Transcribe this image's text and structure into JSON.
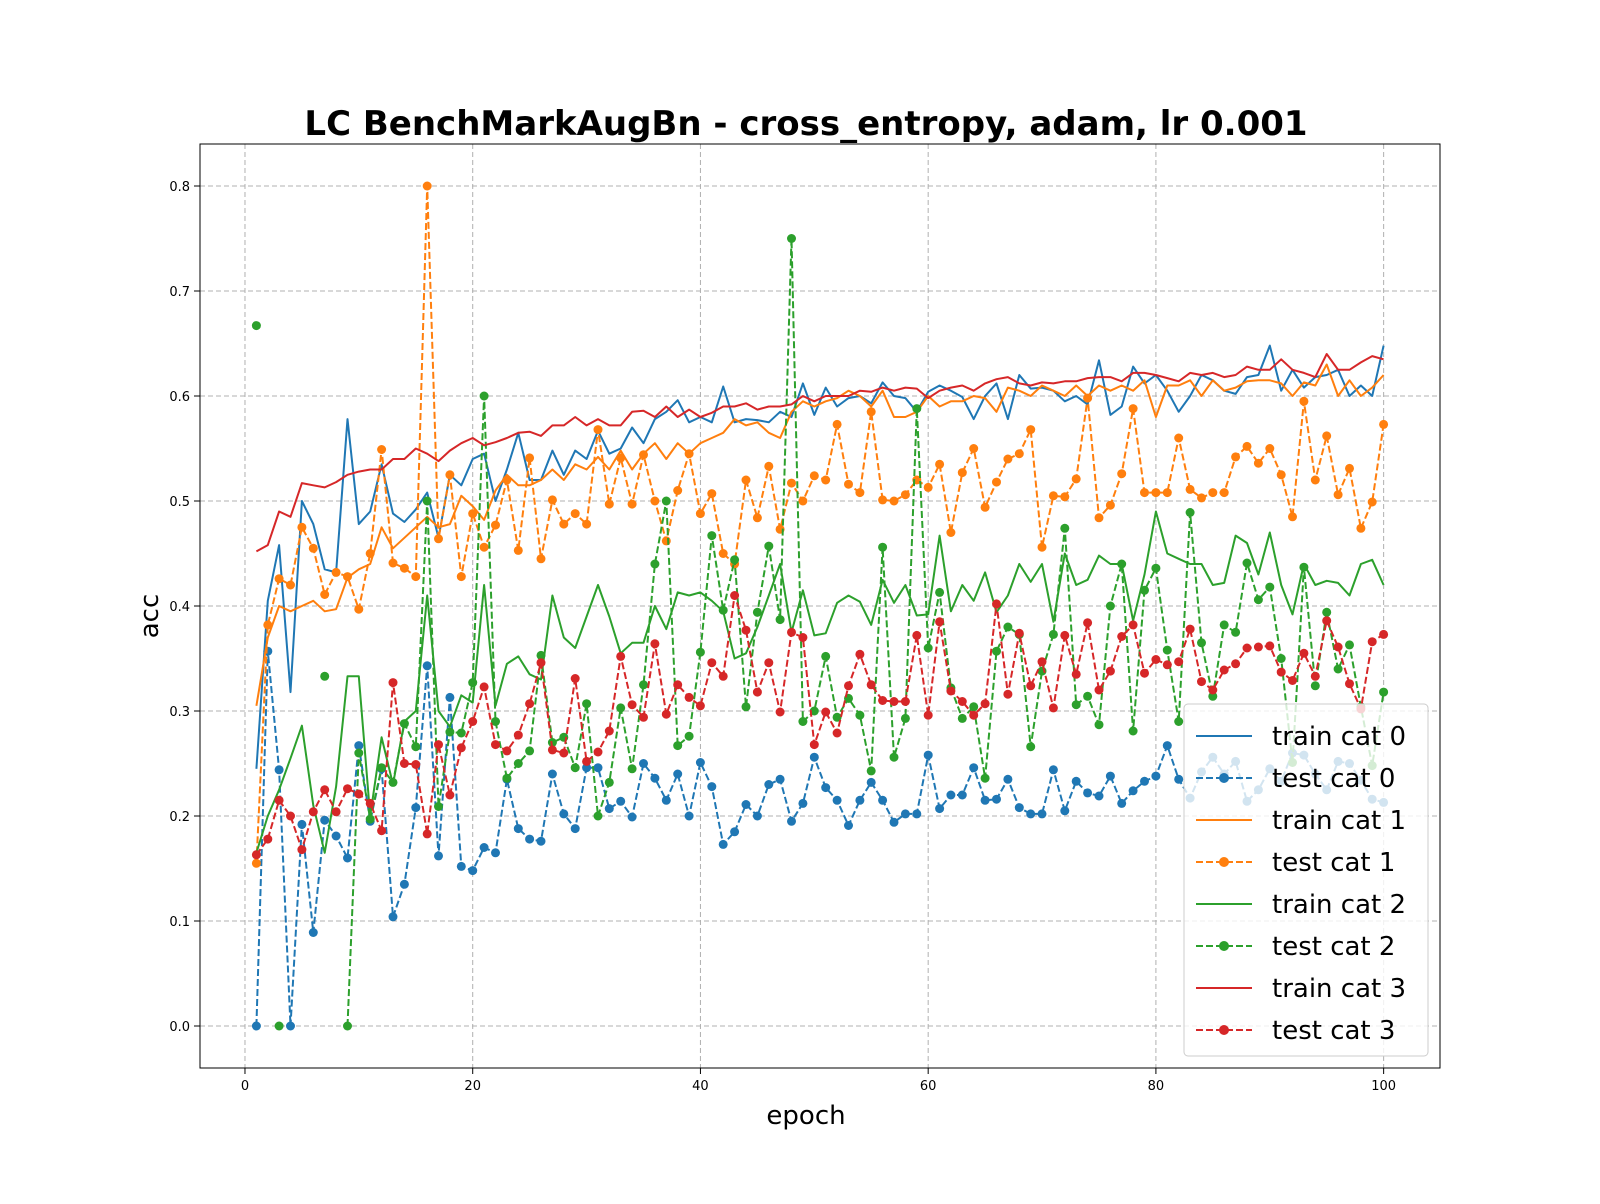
{
  "chart_data": {
    "type": "line",
    "title": "LC BenchMarkAugBn - cross_entropy, adam, lr 0.001",
    "xlabel": "epoch",
    "ylabel": "acc",
    "xlim": [
      -3.95,
      104.95
    ],
    "ylim": [
      -0.04,
      0.84
    ],
    "xticks": [
      0,
      20,
      40,
      60,
      80,
      100
    ],
    "xtick_labels": [
      "0",
      "20",
      "40",
      "60",
      "80",
      "100"
    ],
    "yticks": [
      0.0,
      0.1,
      0.2,
      0.3,
      0.4,
      0.5,
      0.6,
      0.7,
      0.8
    ],
    "ytick_labels": [
      "0.0",
      "0.1",
      "0.2",
      "0.3",
      "0.4",
      "0.5",
      "0.6",
      "0.7",
      "0.8"
    ],
    "grid": true,
    "legend_position": "lower-right",
    "x": [
      1,
      2,
      3,
      4,
      5,
      6,
      7,
      8,
      9,
      10,
      11,
      12,
      13,
      14,
      15,
      16,
      17,
      18,
      19,
      20,
      21,
      22,
      23,
      24,
      25,
      26,
      27,
      28,
      29,
      30,
      31,
      32,
      33,
      34,
      35,
      36,
      37,
      38,
      39,
      40,
      41,
      42,
      43,
      44,
      45,
      46,
      47,
      48,
      49,
      50,
      51,
      52,
      53,
      54,
      55,
      56,
      57,
      58,
      59,
      60,
      61,
      62,
      63,
      64,
      65,
      66,
      67,
      68,
      69,
      70,
      71,
      72,
      73,
      74,
      75,
      76,
      77,
      78,
      79,
      80,
      81,
      82,
      83,
      84,
      85,
      86,
      87,
      88,
      89,
      90,
      91,
      92,
      93,
      94,
      95,
      96,
      97,
      98,
      99,
      100
    ],
    "series": [
      {
        "name": "train cat 0",
        "color": "#1f77b4",
        "style": "solid",
        "marker": false,
        "values": [
          0.245,
          0.405,
          0.458,
          0.318,
          0.5,
          0.478,
          0.435,
          0.432,
          0.578,
          0.478,
          0.49,
          0.535,
          0.488,
          0.48,
          0.492,
          0.508,
          0.465,
          0.525,
          0.515,
          0.54,
          0.545,
          0.5,
          0.53,
          0.565,
          0.52,
          0.52,
          0.548,
          0.525,
          0.548,
          0.54,
          0.567,
          0.545,
          0.55,
          0.57,
          0.555,
          0.578,
          0.585,
          0.596,
          0.575,
          0.58,
          0.575,
          0.609,
          0.575,
          0.578,
          0.577,
          0.575,
          0.585,
          0.58,
          0.612,
          0.582,
          0.608,
          0.59,
          0.598,
          0.6,
          0.593,
          0.613,
          0.6,
          0.598,
          0.585,
          0.604,
          0.61,
          0.605,
          0.599,
          0.578,
          0.6,
          0.612,
          0.578,
          0.62,
          0.607,
          0.608,
          0.605,
          0.595,
          0.6,
          0.592,
          0.634,
          0.582,
          0.59,
          0.628,
          0.612,
          0.62,
          0.605,
          0.585,
          0.6,
          0.62,
          0.615,
          0.605,
          0.602,
          0.618,
          0.62,
          0.648,
          0.605,
          0.625,
          0.608,
          0.618,
          0.62,
          0.625,
          0.6,
          0.61,
          0.6,
          0.648
        ]
      },
      {
        "name": "test cat 0",
        "color": "#1f77b4",
        "style": "dashed",
        "marker": true,
        "values": [
          0.0,
          0.357,
          0.244,
          0.0,
          0.192,
          0.089,
          0.196,
          0.181,
          0.16,
          0.267,
          0.195,
          0.245,
          0.104,
          0.135,
          0.208,
          0.343,
          0.162,
          0.313,
          0.152,
          0.148,
          0.17,
          0.165,
          0.235,
          0.188,
          0.178,
          0.176,
          0.24,
          0.202,
          0.188,
          0.246,
          0.246,
          0.207,
          0.214,
          0.199,
          0.25,
          0.236,
          0.215,
          0.24,
          0.2,
          0.251,
          0.228,
          0.173,
          0.185,
          0.211,
          0.2,
          0.23,
          0.235,
          0.195,
          0.212,
          0.256,
          0.227,
          0.215,
          0.191,
          0.215,
          0.232,
          0.215,
          0.194,
          0.202,
          0.202,
          0.258,
          0.207,
          0.22,
          0.22,
          0.246,
          0.215,
          0.216,
          0.235,
          0.208,
          0.202,
          0.202,
          0.244,
          0.205,
          0.233,
          0.222,
          0.219,
          0.238,
          0.212,
          0.224,
          0.233,
          0.238,
          0.267,
          0.235,
          0.217,
          0.242,
          0.256,
          0.24,
          0.252,
          0.214,
          0.225,
          0.245,
          0.233,
          0.26,
          0.258,
          0.24,
          0.225,
          0.252,
          0.25,
          0.234,
          0.216,
          0.213
        ]
      },
      {
        "name": "train cat 1",
        "color": "#ff7f0e",
        "style": "solid",
        "marker": false,
        "values": [
          0.305,
          0.37,
          0.4,
          0.395,
          0.4,
          0.405,
          0.395,
          0.397,
          0.427,
          0.435,
          0.44,
          0.475,
          0.455,
          0.465,
          0.475,
          0.485,
          0.475,
          0.478,
          0.505,
          0.495,
          0.482,
          0.51,
          0.525,
          0.515,
          0.515,
          0.52,
          0.53,
          0.52,
          0.535,
          0.53,
          0.542,
          0.53,
          0.548,
          0.53,
          0.545,
          0.555,
          0.54,
          0.555,
          0.545,
          0.555,
          0.56,
          0.565,
          0.578,
          0.572,
          0.575,
          0.565,
          0.56,
          0.585,
          0.595,
          0.59,
          0.595,
          0.598,
          0.605,
          0.6,
          0.59,
          0.605,
          0.58,
          0.58,
          0.585,
          0.6,
          0.59,
          0.595,
          0.595,
          0.6,
          0.598,
          0.585,
          0.608,
          0.605,
          0.6,
          0.61,
          0.605,
          0.6,
          0.61,
          0.6,
          0.61,
          0.605,
          0.61,
          0.605,
          0.615,
          0.58,
          0.61,
          0.61,
          0.615,
          0.6,
          0.615,
          0.605,
          0.608,
          0.614,
          0.615,
          0.615,
          0.612,
          0.6,
          0.613,
          0.61,
          0.63,
          0.6,
          0.615,
          0.6,
          0.608,
          0.62
        ]
      },
      {
        "name": "test cat 1",
        "color": "#ff7f0e",
        "style": "dashed",
        "marker": true,
        "values": [
          0.155,
          0.382,
          0.426,
          0.42,
          0.475,
          0.455,
          0.411,
          0.432,
          0.428,
          0.397,
          0.45,
          0.549,
          0.441,
          0.436,
          0.428,
          0.8,
          0.464,
          0.525,
          0.428,
          0.488,
          0.456,
          0.477,
          0.52,
          0.453,
          0.541,
          0.445,
          0.501,
          0.478,
          0.488,
          0.478,
          0.568,
          0.497,
          0.541,
          0.497,
          0.544,
          0.5,
          0.462,
          0.51,
          0.545,
          0.488,
          0.507,
          0.45,
          0.44,
          0.52,
          0.484,
          0.533,
          0.473,
          0.517,
          0.5,
          0.524,
          0.52,
          0.573,
          0.516,
          0.508,
          0.585,
          0.501,
          0.5,
          0.506,
          0.52,
          0.513,
          0.535,
          0.47,
          0.527,
          0.55,
          0.494,
          0.518,
          0.54,
          0.545,
          0.568,
          0.456,
          0.505,
          0.504,
          0.521,
          0.598,
          0.484,
          0.496,
          0.526,
          0.588,
          0.508,
          0.508,
          0.508,
          0.56,
          0.511,
          0.503,
          0.508,
          0.508,
          0.542,
          0.552,
          0.536,
          0.55,
          0.525,
          0.485,
          0.595,
          0.52,
          0.562,
          0.506,
          0.531,
          0.474,
          0.499,
          0.573
        ]
      },
      {
        "name": "train cat 2",
        "color": "#2ca02c",
        "style": "solid",
        "marker": false,
        "values": [
          0.165,
          0.2,
          0.225,
          0.255,
          0.286,
          0.21,
          0.165,
          0.228,
          0.333,
          0.333,
          0.2,
          0.275,
          0.23,
          0.29,
          0.3,
          0.41,
          0.3,
          0.285,
          0.315,
          0.308,
          0.42,
          0.305,
          0.345,
          0.352,
          0.335,
          0.33,
          0.41,
          0.37,
          0.36,
          0.39,
          0.42,
          0.39,
          0.355,
          0.365,
          0.365,
          0.4,
          0.378,
          0.413,
          0.41,
          0.413,
          0.405,
          0.395,
          0.35,
          0.355,
          0.38,
          0.41,
          0.44,
          0.375,
          0.415,
          0.372,
          0.374,
          0.403,
          0.41,
          0.404,
          0.382,
          0.425,
          0.403,
          0.42,
          0.391,
          0.392,
          0.467,
          0.395,
          0.42,
          0.405,
          0.432,
          0.394,
          0.41,
          0.44,
          0.423,
          0.44,
          0.385,
          0.45,
          0.42,
          0.425,
          0.448,
          0.44,
          0.44,
          0.386,
          0.43,
          0.49,
          0.45,
          0.445,
          0.44,
          0.44,
          0.42,
          0.422,
          0.467,
          0.46,
          0.43,
          0.47,
          0.42,
          0.392,
          0.44,
          0.42,
          0.424,
          0.422,
          0.41,
          0.44,
          0.444,
          0.42
        ]
      },
      {
        "name": "test cat 2",
        "color": "#2ca02c",
        "style": "dashed",
        "marker": true,
        "values": [
          0.667,
          null,
          0.0,
          null,
          null,
          null,
          0.333,
          null,
          0.0,
          0.26,
          0.197,
          0.246,
          0.232,
          0.288,
          0.266,
          0.5,
          0.209,
          0.28,
          0.279,
          0.327,
          0.6,
          0.29,
          0.236,
          0.25,
          0.262,
          0.353,
          0.27,
          0.275,
          0.246,
          0.307,
          0.2,
          0.232,
          0.303,
          0.245,
          0.325,
          0.44,
          0.5,
          0.267,
          0.276,
          0.356,
          0.467,
          0.396,
          0.444,
          0.304,
          0.394,
          0.457,
          0.387,
          0.75,
          0.29,
          0.3,
          0.352,
          0.294,
          0.312,
          0.296,
          0.243,
          0.456,
          0.256,
          0.293,
          0.588,
          0.36,
          0.413,
          0.322,
          0.293,
          0.304,
          0.236,
          0.357,
          0.38,
          0.373,
          0.266,
          0.338,
          0.373,
          0.474,
          0.306,
          0.314,
          0.287,
          0.4,
          0.44,
          0.281,
          0.415,
          0.436,
          0.358,
          0.29,
          0.489,
          0.365,
          0.314,
          0.382,
          0.375,
          0.441,
          0.406,
          0.418,
          0.35,
          0.251,
          0.437,
          0.324,
          0.394,
          0.34,
          0.363,
          0.304,
          0.248,
          0.318
        ]
      },
      {
        "name": "train cat 3",
        "color": "#d62728",
        "style": "solid",
        "marker": false,
        "values": [
          0.452,
          0.458,
          0.49,
          0.485,
          0.517,
          0.515,
          0.513,
          0.518,
          0.525,
          0.528,
          0.53,
          0.53,
          0.54,
          0.54,
          0.55,
          0.545,
          0.538,
          0.548,
          0.555,
          0.56,
          0.553,
          0.556,
          0.56,
          0.565,
          0.566,
          0.562,
          0.572,
          0.572,
          0.58,
          0.572,
          0.578,
          0.572,
          0.572,
          0.585,
          0.586,
          0.58,
          0.59,
          0.58,
          0.587,
          0.58,
          0.584,
          0.59,
          0.59,
          0.593,
          0.587,
          0.59,
          0.59,
          0.592,
          0.6,
          0.595,
          0.6,
          0.6,
          0.6,
          0.605,
          0.604,
          0.608,
          0.605,
          0.608,
          0.607,
          0.598,
          0.605,
          0.608,
          0.61,
          0.605,
          0.612,
          0.616,
          0.618,
          0.612,
          0.61,
          0.613,
          0.612,
          0.614,
          0.614,
          0.617,
          0.618,
          0.618,
          0.614,
          0.622,
          0.622,
          0.62,
          0.617,
          0.614,
          0.622,
          0.62,
          0.622,
          0.618,
          0.62,
          0.628,
          0.625,
          0.625,
          0.635,
          0.625,
          0.622,
          0.618,
          0.64,
          0.625,
          0.625,
          0.632,
          0.638,
          0.635
        ]
      },
      {
        "name": "test cat 3",
        "color": "#d62728",
        "style": "dashed",
        "marker": true,
        "values": [
          0.163,
          0.178,
          0.215,
          0.2,
          0.168,
          0.204,
          0.225,
          0.204,
          0.226,
          0.221,
          0.212,
          0.186,
          0.327,
          0.25,
          0.249,
          0.183,
          0.268,
          0.22,
          0.265,
          0.29,
          0.323,
          0.268,
          0.262,
          0.277,
          0.307,
          0.346,
          0.263,
          0.26,
          0.331,
          0.252,
          0.261,
          0.281,
          0.352,
          0.306,
          0.294,
          0.364,
          0.297,
          0.325,
          0.313,
          0.305,
          0.346,
          0.333,
          0.41,
          0.377,
          0.318,
          0.346,
          0.299,
          0.375,
          0.37,
          0.268,
          0.299,
          0.279,
          0.324,
          0.354,
          0.325,
          0.31,
          0.309,
          0.309,
          0.372,
          0.296,
          0.385,
          0.319,
          0.309,
          0.296,
          0.307,
          0.402,
          0.316,
          0.374,
          0.324,
          0.347,
          0.303,
          0.372,
          0.335,
          0.384,
          0.32,
          0.338,
          0.371,
          0.382,
          0.336,
          0.349,
          0.344,
          0.347,
          0.378,
          0.328,
          0.32,
          0.339,
          0.345,
          0.36,
          0.361,
          0.362,
          0.337,
          0.329,
          0.355,
          0.333,
          0.386,
          0.361,
          0.326,
          0.302,
          0.366,
          0.373
        ]
      }
    ]
  }
}
